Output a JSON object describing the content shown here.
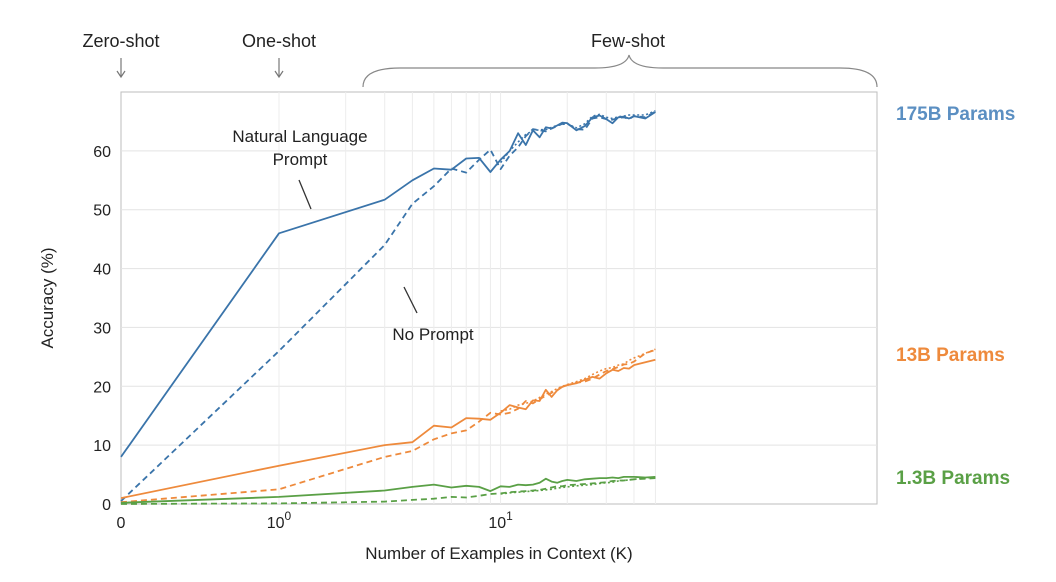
{
  "chart_data": {
    "type": "line",
    "title": "",
    "xlabel": "Number of Examples in Context  (K)",
    "ylabel": "Accuracy (%)",
    "xscale": "log (with 0)",
    "xlim": [
      0,
      50
    ],
    "ylim": [
      0,
      70
    ],
    "yticks": [
      0,
      10,
      20,
      30,
      40,
      50,
      60
    ],
    "xtick_labels": [
      {
        "value": 0,
        "base": "0",
        "exp": ""
      },
      {
        "value": 1,
        "base": "10",
        "exp": "0"
      },
      {
        "value": 10,
        "base": "10",
        "exp": "1"
      }
    ],
    "grid": true,
    "shot_labels": [
      {
        "name": "zero",
        "text": "Zero-shot"
      },
      {
        "name": "one",
        "text": "One-shot"
      },
      {
        "name": "few",
        "text": "Few-shot"
      }
    ],
    "annotations": {
      "natural_language_prompt": [
        "Natural Language",
        "Prompt"
      ],
      "no_prompt": "No Prompt"
    },
    "model_labels": [
      {
        "text": "175B Params",
        "color": "#5b8fc2"
      },
      {
        "text": "13B Params",
        "color": "#ee8a3c"
      },
      {
        "text": "1.3B Params",
        "color": "#5aa046"
      }
    ],
    "series": [
      {
        "model": "175B",
        "prompt": "natural-language",
        "style": "solid",
        "color": "#3a74aa",
        "x": [
          0,
          1,
          3,
          4,
          5,
          6,
          7,
          8,
          9,
          10,
          11,
          12,
          13,
          14,
          15,
          16,
          17,
          18,
          19,
          20,
          22,
          24,
          26,
          28,
          30,
          32,
          34,
          36,
          38,
          40,
          45,
          50
        ],
        "y": [
          8,
          46,
          51.7,
          55,
          57,
          56.8,
          58.7,
          58.8,
          56.4,
          58.5,
          60,
          63,
          61,
          63.5,
          62.3,
          64,
          63.8,
          64.3,
          64.8,
          64.7,
          63.5,
          64.2,
          65.7,
          66,
          65.4,
          64.7,
          65.7,
          65.8,
          65.5,
          65.9,
          65.5,
          66.6
        ]
      },
      {
        "model": "175B",
        "prompt": "none",
        "style": "dashed",
        "color": "#3a74aa",
        "x": [
          0,
          1,
          3,
          4,
          5,
          6,
          7,
          8,
          9,
          10,
          11,
          12,
          13,
          14,
          15,
          16,
          17,
          18,
          19,
          20,
          22,
          24,
          26,
          28,
          30,
          32,
          34,
          36,
          38,
          40,
          45,
          50
        ],
        "y": [
          0.5,
          26,
          44,
          51,
          54,
          57,
          56.3,
          58.5,
          60.2,
          56.9,
          59.2,
          60.6,
          62.5,
          63.7,
          63.5,
          63.3,
          63.8,
          64.2,
          64.6,
          64.6,
          63.7,
          63.6,
          65.5,
          65.7,
          65.4,
          65.3,
          65.6,
          65.7,
          65.4,
          65.9,
          65.7,
          66.7
        ]
      },
      {
        "model": "175B",
        "prompt": "unlabeled",
        "style": "dotted",
        "color": "#3a74aa",
        "x": [
          10,
          11,
          12,
          13,
          14,
          15,
          16,
          17,
          18,
          19,
          20,
          22,
          24,
          26,
          28,
          30,
          32,
          34,
          36,
          38,
          40,
          45,
          50
        ],
        "y": [
          58,
          60,
          61.5,
          62.8,
          63.4,
          63.6,
          63.6,
          64,
          64.3,
          64.5,
          64.6,
          63.9,
          64.6,
          65.9,
          66.2,
          65.7,
          65.5,
          65.8,
          65.9,
          66.1,
          66.1,
          66.1,
          66.8
        ]
      },
      {
        "model": "13B",
        "prompt": "natural-language",
        "style": "solid",
        "color": "#ee8a3c",
        "x": [
          0,
          1,
          3,
          4,
          5,
          6,
          7,
          8,
          9,
          10,
          11,
          12,
          13,
          14,
          15,
          16,
          17,
          18,
          19,
          20,
          22,
          24,
          26,
          28,
          30,
          32,
          34,
          36,
          38,
          40,
          45,
          50
        ],
        "y": [
          1,
          6.5,
          10,
          10.5,
          13.3,
          13,
          14.6,
          14.5,
          14.3,
          15.5,
          16.8,
          16.4,
          16.1,
          17.6,
          17.5,
          19.4,
          18.2,
          19.3,
          19.9,
          20.2,
          20.5,
          21.1,
          21.6,
          21.3,
          22.2,
          22.8,
          22.6,
          23.1,
          23,
          23.6,
          24.1,
          24.5
        ]
      },
      {
        "model": "13B",
        "prompt": "none",
        "style": "dashed",
        "color": "#ee8a3c",
        "x": [
          0,
          1,
          3,
          4,
          5,
          6,
          7,
          8,
          9,
          10,
          11,
          12,
          13,
          14,
          15,
          16,
          17,
          18,
          19,
          20,
          22,
          24,
          26,
          28,
          30,
          32,
          34,
          36,
          38,
          40,
          45,
          50
        ],
        "y": [
          0.3,
          2.5,
          8,
          9,
          11,
          12,
          12.5,
          14,
          15.5,
          15.2,
          15.5,
          16.2,
          17.5,
          17.1,
          17.8,
          18.4,
          18.9,
          19.3,
          20,
          20.2,
          20.6,
          20.8,
          21.3,
          22,
          22.6,
          22.9,
          23.3,
          23.7,
          23.8,
          24.2,
          25.6,
          26.2
        ]
      },
      {
        "model": "13B",
        "prompt": "unlabeled",
        "style": "dotted",
        "color": "#ee8a3c",
        "x": [
          10,
          11,
          12,
          13,
          14,
          15,
          16,
          17,
          18,
          19,
          20,
          22,
          24,
          26,
          28,
          30,
          32,
          34,
          36,
          38,
          40,
          45,
          50
        ],
        "y": [
          15.8,
          16.1,
          16.8,
          17.1,
          17.5,
          18.1,
          18.7,
          19.1,
          19.6,
          20,
          20.3,
          20.8,
          21.3,
          22,
          22.6,
          23,
          23.2,
          23.6,
          23.8,
          24.4,
          24.8,
          25.6,
          26.3
        ]
      },
      {
        "model": "1.3B",
        "prompt": "natural-language",
        "style": "solid",
        "color": "#5aa046",
        "x": [
          0,
          1,
          3,
          4,
          5,
          6,
          7,
          8,
          9,
          10,
          11,
          12,
          13,
          14,
          15,
          16,
          17,
          18,
          19,
          20,
          22,
          24,
          26,
          28,
          30,
          32,
          34,
          36,
          38,
          40,
          45,
          50
        ],
        "y": [
          0.2,
          1.2,
          2.3,
          2.9,
          3.3,
          2.8,
          3.1,
          2.9,
          2.2,
          3,
          2.9,
          3.3,
          3.2,
          3.3,
          3.6,
          4.3,
          3.8,
          3.6,
          3.9,
          4.1,
          3.9,
          4.2,
          4.3,
          4.4,
          4.4,
          4.5,
          4.4,
          4.6,
          4.6,
          4.6,
          4.5,
          4.6
        ]
      },
      {
        "model": "1.3B",
        "prompt": "none",
        "style": "dashed",
        "color": "#5aa046",
        "x": [
          0,
          1,
          3,
          4,
          5,
          6,
          7,
          8,
          9,
          10,
          11,
          12,
          13,
          14,
          15,
          16,
          17,
          18,
          19,
          20,
          22,
          24,
          26,
          28,
          30,
          32,
          34,
          36,
          38,
          40,
          45,
          50
        ],
        "y": [
          0,
          0.1,
          0.4,
          0.7,
          0.9,
          1.2,
          1.1,
          1.4,
          1.7,
          1.8,
          2,
          2.1,
          2.2,
          2.3,
          2.4,
          2.6,
          2.8,
          3,
          3,
          3.2,
          3.3,
          3.4,
          3.5,
          3.6,
          3.7,
          3.9,
          4,
          4,
          4.1,
          4.2,
          4.3,
          4.4
        ]
      },
      {
        "model": "1.3B",
        "prompt": "unlabeled",
        "style": "dotted",
        "color": "#5aa046",
        "x": [
          10,
          11,
          12,
          13,
          14,
          15,
          16,
          17,
          18,
          19,
          20,
          22,
          24,
          26,
          28,
          30,
          32,
          34,
          36,
          38,
          40,
          45,
          50
        ],
        "y": [
          1.7,
          1.9,
          2,
          2.1,
          2.2,
          2.3,
          2.4,
          2.5,
          2.7,
          2.8,
          2.9,
          3.1,
          3.2,
          3.3,
          3.5,
          3.6,
          3.7,
          3.9,
          4,
          4.1,
          4.2,
          4.4,
          4.6
        ]
      }
    ]
  }
}
